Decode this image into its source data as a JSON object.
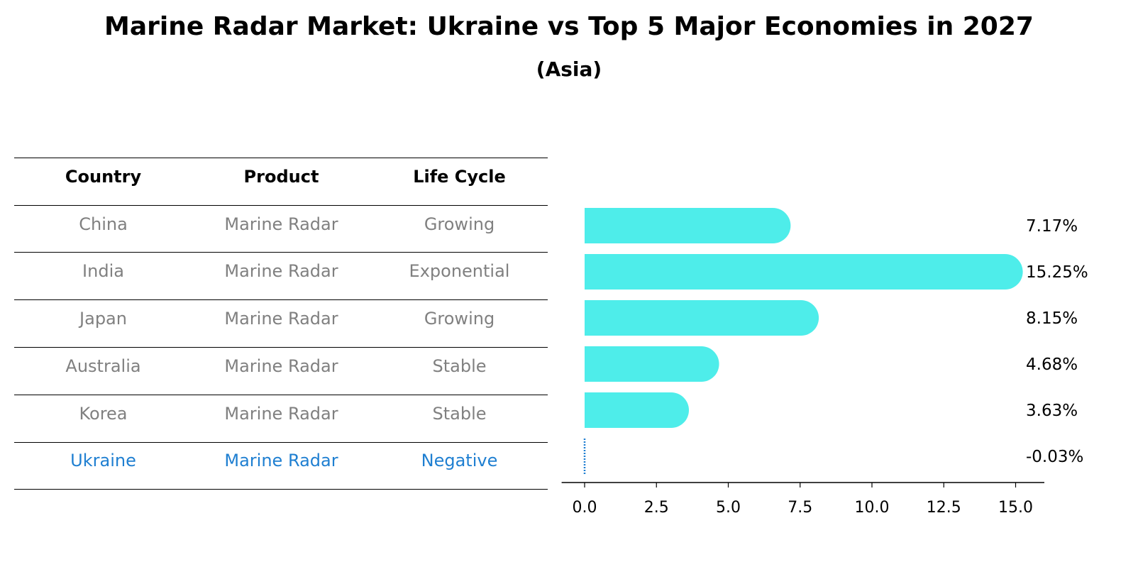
{
  "title": "Marine Radar Market: Ukraine vs Top 5 Major Economies in 2027",
  "subtitle": "(Asia)",
  "table": {
    "headers": [
      "Country",
      "Product",
      "Life Cycle"
    ],
    "rows": [
      {
        "country": "China",
        "product": "Marine Radar",
        "life_cycle": "Growing"
      },
      {
        "country": "India",
        "product": "Marine Radar",
        "life_cycle": "Exponential"
      },
      {
        "country": "Japan",
        "product": "Marine Radar",
        "life_cycle": "Growing"
      },
      {
        "country": "Australia",
        "product": "Marine Radar",
        "life_cycle": "Stable"
      },
      {
        "country": "Korea",
        "product": "Marine Radar",
        "life_cycle": "Stable"
      },
      {
        "country": "Ukraine",
        "product": "Marine Radar",
        "life_cycle": "Negative"
      }
    ]
  },
  "chart_data": {
    "type": "bar",
    "orientation": "horizontal",
    "categories": [
      "China",
      "India",
      "Japan",
      "Australia",
      "Korea",
      "Ukraine"
    ],
    "values": [
      7.17,
      15.25,
      8.15,
      4.68,
      3.63,
      -0.03
    ],
    "value_labels": [
      "7.17%",
      "15.25%",
      "8.15%",
      "4.68%",
      "3.63%",
      "-0.03%"
    ],
    "xticks": [
      0.0,
      2.5,
      5.0,
      7.5,
      10.0,
      12.5,
      15.0
    ],
    "xtick_labels": [
      "0.0",
      "2.5",
      "5.0",
      "7.5",
      "10.0",
      "12.5",
      "15.0"
    ],
    "xlim": [
      -0.8,
      16.0
    ],
    "grid": false,
    "colors": {
      "bar": "#4EEDEA",
      "highlight": "#1F7FD1",
      "text_gray": "#808080"
    }
  }
}
